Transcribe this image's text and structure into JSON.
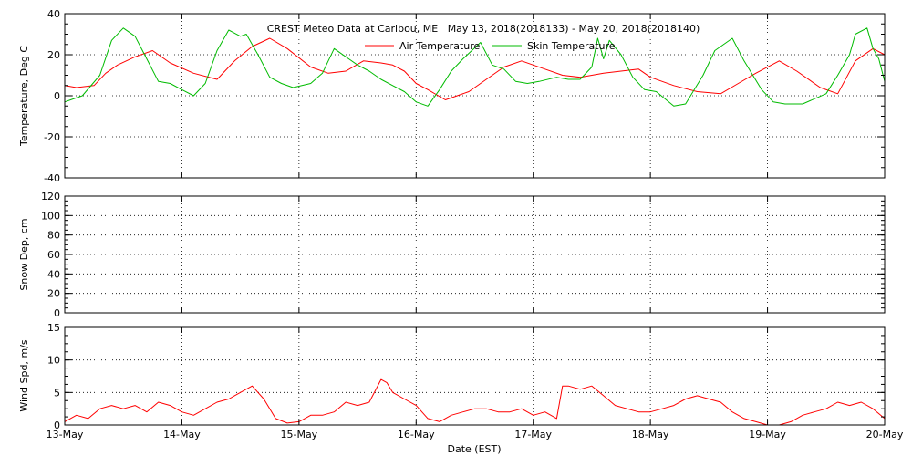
{
  "title": "CREST Meteo Data at Caribou, ME   May 13, 2018(2018133) - May 20, 2018(2018140)",
  "xlabel": "Date (EST)",
  "x_ticks": [
    "13-May",
    "14-May",
    "15-May",
    "16-May",
    "17-May",
    "18-May",
    "19-May",
    "20-May"
  ],
  "colors": {
    "air": "#ff0000",
    "skin": "#00bb00",
    "wind": "#ff0000"
  },
  "chart_data": [
    {
      "type": "line",
      "ylabel": "Temperature, Deg C",
      "ylim": [
        -40,
        40
      ],
      "yticks": [
        -40,
        -20,
        0,
        20,
        40
      ],
      "grid": true,
      "legend": "top-center",
      "x_unit": "days since 13-May 00:00 EST",
      "series": [
        {
          "name": "Air Temperature",
          "color": "#ff0000",
          "x": [
            0,
            0.1,
            0.25,
            0.35,
            0.45,
            0.6,
            0.75,
            0.9,
            1.1,
            1.3,
            1.45,
            1.6,
            1.75,
            1.9,
            2.1,
            2.25,
            2.4,
            2.55,
            2.7,
            2.8,
            2.9,
            3.0,
            3.1,
            3.25,
            3.45,
            3.6,
            3.75,
            3.9,
            4.1,
            4.25,
            4.4,
            4.6,
            4.75,
            4.9,
            5.0,
            5.2,
            5.4,
            5.6,
            5.75,
            5.9,
            6.1,
            6.25,
            6.45,
            6.6,
            6.75,
            6.9,
            7.0
          ],
          "values": [
            5,
            4,
            5,
            11,
            15,
            19,
            22,
            16,
            11,
            8,
            17,
            24,
            28,
            23,
            14,
            11,
            12,
            17,
            16,
            15,
            12,
            6,
            3,
            -2,
            2,
            8,
            14,
            17,
            13,
            10,
            9,
            11,
            12,
            13,
            9,
            5,
            2,
            1,
            6,
            11,
            17,
            12,
            4,
            1,
            17,
            23,
            20
          ]
        },
        {
          "name": "Skin Temperature",
          "color": "#00bb00",
          "x": [
            0,
            0.05,
            0.15,
            0.3,
            0.4,
            0.5,
            0.6,
            0.7,
            0.8,
            0.9,
            1.0,
            1.1,
            1.2,
            1.3,
            1.4,
            1.5,
            1.55,
            1.65,
            1.75,
            1.85,
            1.95,
            2.1,
            2.2,
            2.3,
            2.4,
            2.5,
            2.6,
            2.7,
            2.8,
            2.9,
            3.0,
            3.1,
            3.2,
            3.3,
            3.4,
            3.55,
            3.65,
            3.75,
            3.85,
            3.95,
            4.05,
            4.2,
            4.3,
            4.4,
            4.5,
            4.55,
            4.6,
            4.65,
            4.75,
            4.85,
            4.95,
            5.05,
            5.2,
            5.3,
            5.45,
            5.55,
            5.7,
            5.8,
            5.95,
            6.05,
            6.15,
            6.3,
            6.5,
            6.6,
            6.7,
            6.75,
            6.85,
            6.9,
            6.95,
            7.0
          ],
          "values": [
            -3,
            -2,
            0,
            10,
            27,
            33,
            29,
            18,
            7,
            6,
            3,
            0,
            6,
            22,
            32,
            29,
            30,
            20,
            9,
            6,
            4,
            6,
            11,
            23,
            19,
            15,
            12,
            8,
            5,
            2,
            -3,
            -5,
            3,
            12,
            18,
            26,
            15,
            13,
            7,
            6,
            7,
            9,
            8,
            8,
            14,
            28,
            18,
            27,
            20,
            9,
            3,
            2,
            -5,
            -4,
            10,
            22,
            28,
            17,
            3,
            -3,
            -4,
            -4,
            1,
            10,
            20,
            30,
            33,
            23,
            18,
            7
          ]
        }
      ]
    },
    {
      "type": "line",
      "ylabel": "Snow Dep, cm",
      "ylim": [
        0,
        120
      ],
      "yticks": [
        0,
        20,
        40,
        60,
        80,
        100,
        120
      ],
      "grid": true,
      "series": []
    },
    {
      "type": "line",
      "ylabel": "Wind Spd, m/s",
      "ylim": [
        0,
        15
      ],
      "yticks": [
        0,
        5,
        10,
        15
      ],
      "grid": true,
      "series": [
        {
          "color": "#ff0000",
          "x": [
            0,
            0.1,
            0.2,
            0.3,
            0.4,
            0.5,
            0.6,
            0.7,
            0.8,
            0.9,
            1.0,
            1.1,
            1.2,
            1.3,
            1.4,
            1.5,
            1.6,
            1.7,
            1.8,
            1.9,
            2.0,
            2.1,
            2.2,
            2.3,
            2.4,
            2.5,
            2.6,
            2.7,
            2.75,
            2.8,
            2.9,
            3.0,
            3.1,
            3.2,
            3.3,
            3.4,
            3.5,
            3.6,
            3.7,
            3.8,
            3.9,
            4.0,
            4.1,
            4.2,
            4.25,
            4.3,
            4.4,
            4.5,
            4.6,
            4.7,
            4.8,
            4.9,
            5.0,
            5.1,
            5.2,
            5.3,
            5.4,
            5.5,
            5.6,
            5.7,
            5.8,
            5.9,
            6.0,
            6.1,
            6.2,
            6.3,
            6.4,
            6.5,
            6.6,
            6.7,
            6.8,
            6.9,
            7.0
          ],
          "values": [
            0.5,
            1.5,
            1.0,
            2.5,
            3.0,
            2.5,
            3.0,
            2.0,
            3.5,
            3.0,
            2.0,
            1.5,
            2.5,
            3.5,
            4.0,
            5.0,
            6.0,
            4.0,
            1.0,
            0.3,
            0.5,
            1.5,
            1.5,
            2.0,
            3.5,
            3.0,
            3.5,
            7.0,
            6.5,
            5.0,
            4.0,
            3.0,
            1.0,
            0.5,
            1.5,
            2.0,
            2.5,
            2.5,
            2.0,
            2.0,
            2.5,
            1.5,
            2.0,
            1.0,
            6.0,
            6.0,
            5.5,
            6.0,
            4.5,
            3.0,
            2.5,
            2.0,
            2.0,
            2.5,
            3.0,
            4.0,
            4.5,
            4.0,
            3.5,
            2.0,
            1.0,
            0.5,
            0.0,
            0.0,
            0.5,
            1.5,
            2.0,
            2.5,
            3.5,
            3.0,
            3.5,
            2.5,
            1.0
          ]
        }
      ]
    }
  ]
}
